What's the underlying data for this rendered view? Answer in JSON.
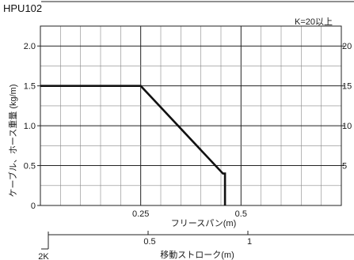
{
  "chart_data": {
    "type": "line",
    "title": "HPU102",
    "annotation": "K=20以上",
    "ylabel": "ケーブル、ホース重量 (kg/m)",
    "xlabel": "フリースパン(m)",
    "x2label": "移動ストローク(m)",
    "x2_origin_label": "2K",
    "xlim": [
      0,
      0.75
    ],
    "ylim": [
      0,
      2.25
    ],
    "yticks": [
      {
        "value": 0,
        "label": "0"
      },
      {
        "value": 0.5,
        "label": "0.5"
      },
      {
        "value": 1.0,
        "label": "1.0"
      },
      {
        "value": 1.5,
        "label": "1.5"
      },
      {
        "value": 2.0,
        "label": "2.0"
      }
    ],
    "y2ticks": [
      {
        "value": 0.5,
        "label": "5"
      },
      {
        "value": 1.0,
        "label": "10"
      },
      {
        "value": 1.5,
        "label": "15"
      },
      {
        "value": 2.0,
        "label": "20"
      }
    ],
    "xticks": [
      {
        "value": 0.25,
        "label": "0.25"
      },
      {
        "value": 0.5,
        "label": "0.5"
      }
    ],
    "x2ticks": [
      {
        "value": 0.5,
        "label": "0.5"
      },
      {
        "value": 1,
        "label": "1"
      }
    ],
    "x2_range": [
      0,
      1.5
    ],
    "grid": true,
    "series": [
      {
        "x": [
          0,
          0.25,
          0.455,
          0.455,
          0.46,
          0.46
        ],
        "y": [
          1.5,
          1.5,
          0.4,
          0.4,
          0.4,
          0
        ]
      }
    ],
    "colors": {
      "line": "#111111",
      "grid": "#888888",
      "axes": "#222222"
    }
  }
}
